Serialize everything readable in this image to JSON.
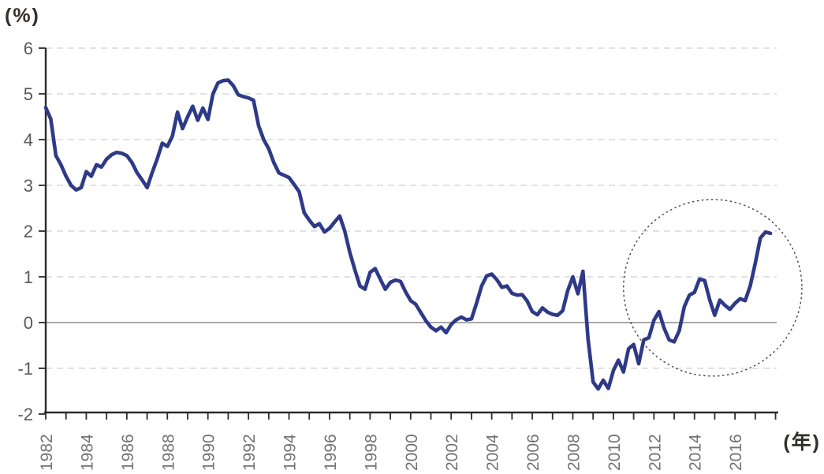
{
  "chart_data": {
    "type": "line",
    "title": "",
    "ylabel": "(%)",
    "xlabel": "(年)",
    "ylim": [
      -2,
      6
    ],
    "xlim": [
      1982,
      2018.1
    ],
    "yticks": [
      6,
      5,
      4,
      3,
      2,
      1,
      0,
      -1,
      -2
    ],
    "xtick_labels": [
      "1982",
      "1984",
      "1986",
      "1988",
      "1990",
      "1992",
      "1994",
      "1996",
      "1998",
      "2000",
      "2002",
      "2004",
      "2006",
      "2008",
      "2010",
      "2012",
      "2014",
      "2016"
    ],
    "xtick_minor_years": {
      "start": 1982,
      "end": 2018,
      "step": 1
    },
    "grid": "horizontal-dashed",
    "legend": "none",
    "zero_line": true,
    "series": [
      {
        "name": "quarterly-percent-series",
        "color": "#2e3a87",
        "x_start": 1982.0,
        "x_step": 0.25,
        "values": [
          4.7,
          4.45,
          3.65,
          3.45,
          3.2,
          3.0,
          2.9,
          2.95,
          3.3,
          3.2,
          3.45,
          3.4,
          3.57,
          3.67,
          3.72,
          3.7,
          3.65,
          3.5,
          3.28,
          3.12,
          2.95,
          3.28,
          3.58,
          3.92,
          3.85,
          4.08,
          4.6,
          4.24,
          4.5,
          4.73,
          4.42,
          4.69,
          4.44,
          5.0,
          5.24,
          5.29,
          5.3,
          5.18,
          4.98,
          4.94,
          4.91,
          4.86,
          4.3,
          4.0,
          3.8,
          3.5,
          3.27,
          3.22,
          3.17,
          3.02,
          2.86,
          2.4,
          2.24,
          2.1,
          2.16,
          1.98,
          2.06,
          2.2,
          2.33,
          2.0,
          1.53,
          1.15,
          0.8,
          0.73,
          1.1,
          1.18,
          0.95,
          0.73,
          0.88,
          0.93,
          0.9,
          0.67,
          0.48,
          0.4,
          0.22,
          0.04,
          -0.1,
          -0.18,
          -0.1,
          -0.22,
          -0.04,
          0.06,
          0.12,
          0.06,
          0.08,
          0.42,
          0.8,
          1.02,
          1.06,
          0.94,
          0.77,
          0.8,
          0.64,
          0.6,
          0.61,
          0.47,
          0.24,
          0.17,
          0.32,
          0.23,
          0.18,
          0.16,
          0.26,
          0.7,
          1.0,
          0.63,
          1.12,
          -0.35,
          -1.3,
          -1.45,
          -1.26,
          -1.44,
          -1.05,
          -0.82,
          -1.08,
          -0.57,
          -0.48,
          -0.9,
          -0.38,
          -0.33,
          0.05,
          0.24,
          -0.12,
          -0.38,
          -0.42,
          -0.18,
          0.35,
          0.6,
          0.66,
          0.95,
          0.92,
          0.5,
          0.16,
          0.49,
          0.38,
          0.29,
          0.42,
          0.52,
          0.48,
          0.8,
          1.3,
          1.85,
          1.98,
          1.95
        ]
      }
    ],
    "annotations": [
      {
        "type": "dotted-ellipse",
        "purpose": "highlight-recent-period",
        "center_year": 2014.9,
        "center_value": 0.76,
        "radius_years": 4.4,
        "radius_value": 1.93
      }
    ]
  },
  "colors": {
    "line": "#2e3a87",
    "grid": "#d9d9d9",
    "zero_line": "#8c8c8c",
    "axis": "#2b2b2b",
    "ytick_text": "#595959",
    "xtick_text": "#737373",
    "unit_text": "#332f2b",
    "annotation_circle": "#404040",
    "background": "#ffffff"
  }
}
